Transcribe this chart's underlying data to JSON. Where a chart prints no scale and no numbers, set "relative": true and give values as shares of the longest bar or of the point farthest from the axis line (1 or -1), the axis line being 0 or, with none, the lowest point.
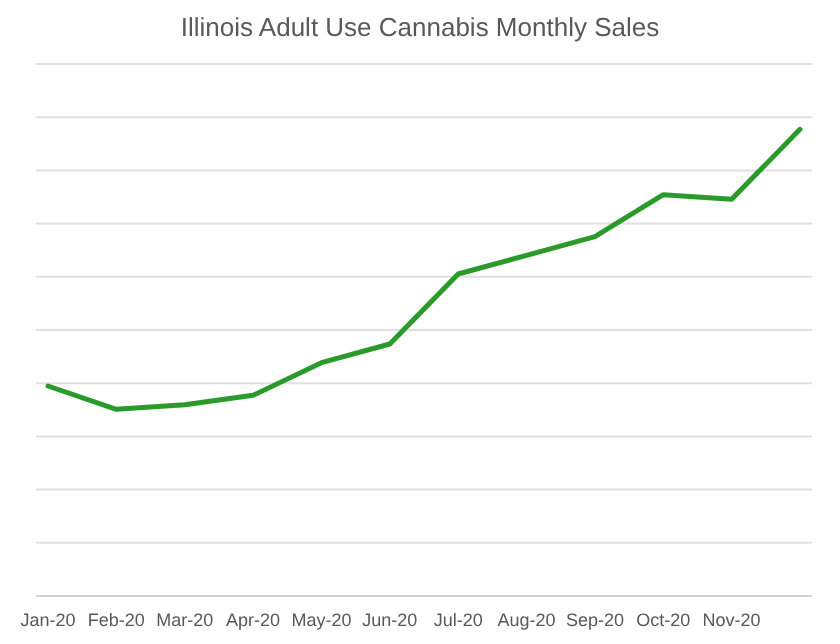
{
  "chart_data": {
    "type": "line",
    "title": "Illinois Adult Use Cannabis Monthly Sales",
    "relative": true,
    "categories": [
      "Jan-20",
      "Feb-20",
      "Mar-20",
      "Apr-20",
      "May-20",
      "Jun-20",
      "Jul-20",
      "Aug-20",
      "Sep-20",
      "Oct-20",
      "Nov-20",
      null
    ],
    "series": [
      {
        "color": "#2a9a2a",
        "values": [
          0.45,
          0.4,
          0.41,
          0.43,
          0.5,
          0.54,
          0.69,
          0.73,
          0.77,
          0.86,
          0.85,
          1
        ]
      }
    ],
    "grid": "y",
    "marker": "none",
    "line_style": "solid"
  }
}
